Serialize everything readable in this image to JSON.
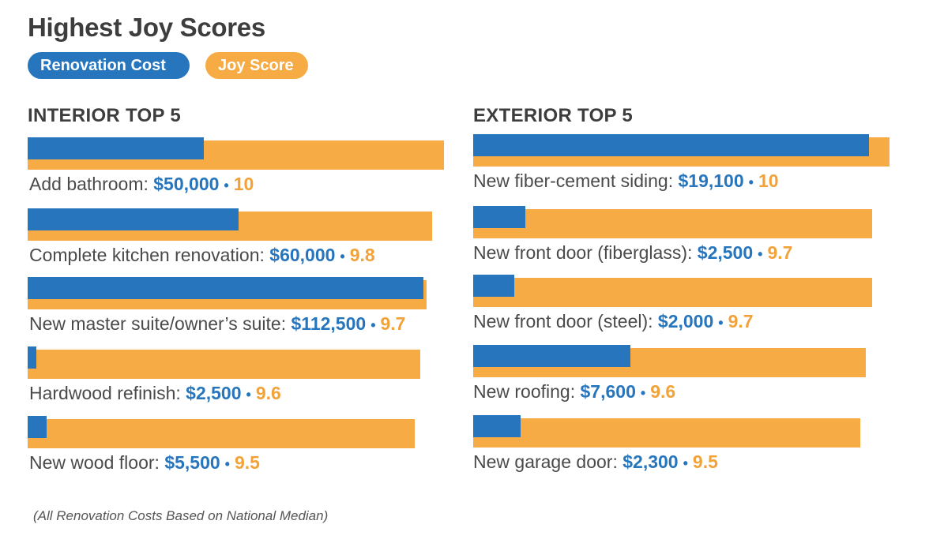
{
  "title": "Highest Joy Scores",
  "legend": {
    "cost": "Renovation Cost",
    "joy": "Joy Score"
  },
  "colors": {
    "cost": "#2675bd",
    "joy": "#f6ab45"
  },
  "footnote": "(All Renovation Costs Based on National Median)",
  "chart_data": [
    {
      "type": "bar",
      "title": "INTERIOR TOP 5",
      "categories": [
        "Add bathroom",
        "Complete kitchen renovation",
        "New master suite/owner’s suite",
        "Hardwood refinish",
        "New wood floor"
      ],
      "series": [
        {
          "name": "Renovation Cost",
          "labels": [
            "$50,000",
            "$60,000",
            "$112,500",
            "$2,500",
            "$5,500"
          ],
          "values": [
            50000,
            60000,
            112500,
            2500,
            5500
          ]
        },
        {
          "name": "Joy Score",
          "labels": [
            "10",
            "9.8",
            "9.7",
            "9.6",
            "9.5"
          ],
          "values": [
            10,
            9.8,
            9.7,
            9.6,
            9.5
          ]
        }
      ]
    },
    {
      "type": "bar",
      "title": "EXTERIOR TOP 5",
      "categories": [
        "New fiber-cement siding",
        "New front door (fiberglass)",
        "New front door (steel)",
        "New roofing",
        "New garage door"
      ],
      "series": [
        {
          "name": "Renovation Cost",
          "labels": [
            "$19,100",
            "$2,500",
            "$2,000",
            "$7,600",
            "$2,300"
          ],
          "values": [
            19100,
            2500,
            2000,
            7600,
            2300
          ]
        },
        {
          "name": "Joy Score",
          "labels": [
            "10",
            "9.7",
            "9.7",
            "9.6",
            "9.5"
          ],
          "values": [
            10,
            9.7,
            9.7,
            9.6,
            9.5
          ]
        }
      ]
    }
  ]
}
